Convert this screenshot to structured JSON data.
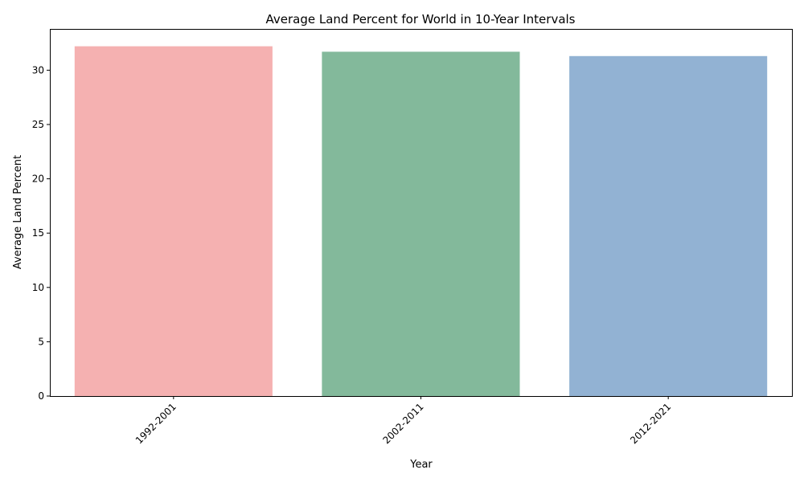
{
  "chart_data": {
    "type": "bar",
    "title": "Average Land Percent for World in 10-Year Intervals",
    "xlabel": "Year",
    "ylabel": "Average Land Percent",
    "categories": [
      "1992-2001",
      "2002-2011",
      "2012-2021"
    ],
    "values": [
      32.2,
      31.7,
      31.3
    ],
    "colors": [
      "#f5b1b1",
      "#83b99b",
      "#92b2d3"
    ],
    "ylim": [
      0,
      33.8
    ],
    "yticks": [
      0,
      5,
      10,
      15,
      20,
      25,
      30
    ],
    "grid": false,
    "legend": "none"
  }
}
